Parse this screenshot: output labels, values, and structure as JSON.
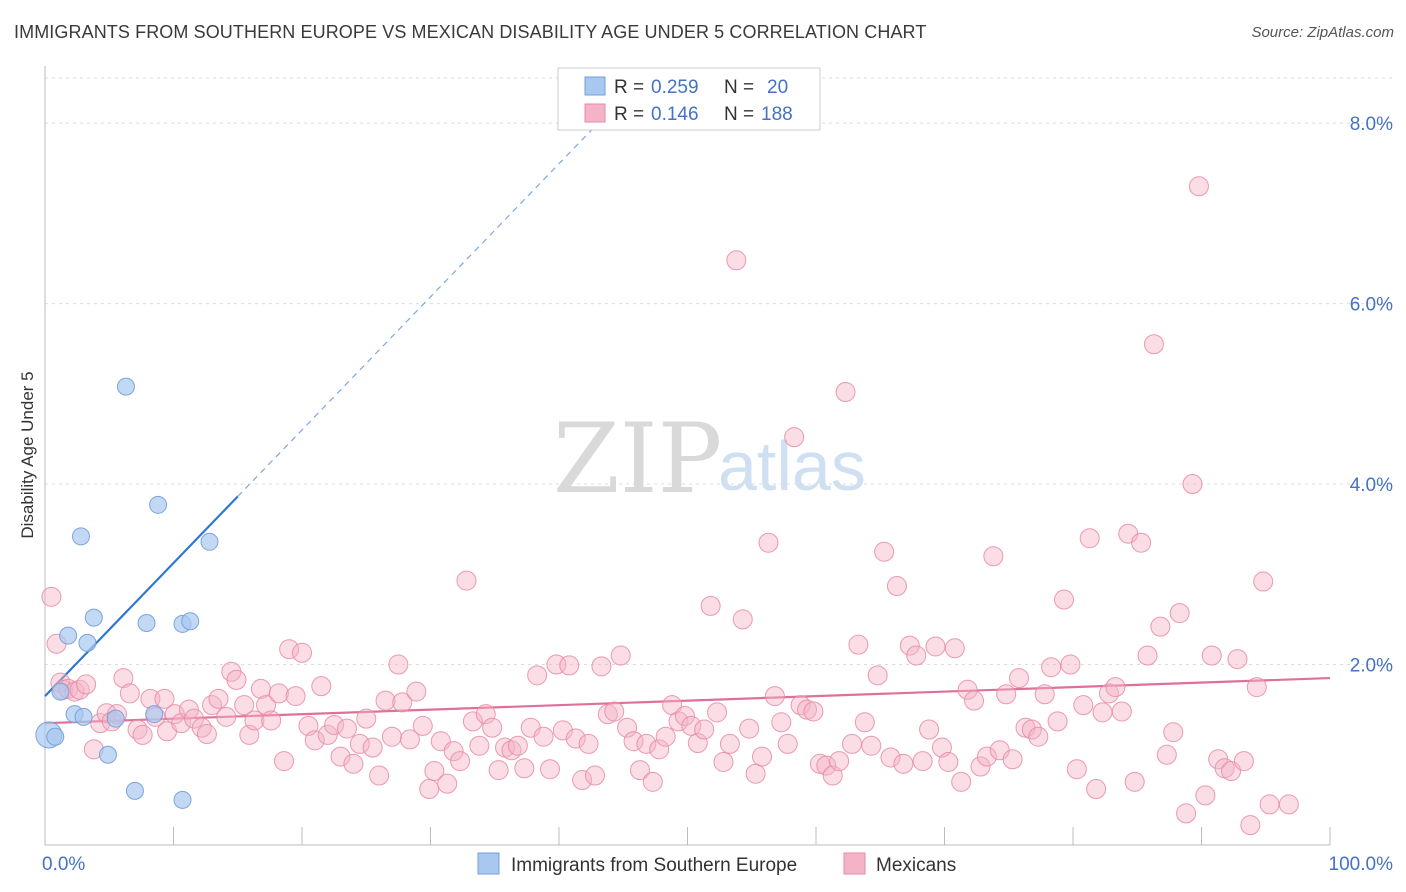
{
  "header": {
    "title": "IMMIGRANTS FROM SOUTHERN EUROPE VS MEXICAN DISABILITY AGE UNDER 5 CORRELATION CHART",
    "source": "Source: ZipAtlas.com"
  },
  "watermark": {
    "zip": "ZIP",
    "atlas": "atlas"
  },
  "legend": {
    "rows": [
      {
        "r_label": "R =",
        "r_value": "0.259",
        "n_label": "N =",
        "n_value": "20",
        "color": "#a9c8f0"
      },
      {
        "r_label": "R =",
        "r_value": "0.146",
        "n_label": "N =",
        "n_value": "188",
        "color": "#f4b3c6"
      }
    ]
  },
  "bottom_legend": [
    {
      "label": "Immigrants from Southern Europe",
      "color": "#a9c8f0"
    },
    {
      "label": "Mexicans",
      "color": "#f4b3c6"
    }
  ],
  "chart_data": {
    "type": "scatter",
    "title": "IMMIGRANTS FROM SOUTHERN EUROPE VS MEXICAN DISABILITY AGE UNDER 5 CORRELATION CHART",
    "xlabel": "",
    "ylabel": "Disability Age Under 5",
    "xlim": [
      0,
      100
    ],
    "ylim": [
      0,
      8.5
    ],
    "x_tick_labels": [
      {
        "value": 0,
        "label": "0.0%"
      },
      {
        "value": 100,
        "label": "100.0%"
      }
    ],
    "y_tick_labels": [
      {
        "value": 2,
        "label": "2.0%"
      },
      {
        "value": 4,
        "label": "4.0%"
      },
      {
        "value": 6,
        "label": "6.0%"
      },
      {
        "value": 8,
        "label": "8.0%"
      }
    ],
    "grid": true,
    "legend_position": "top-center",
    "series": [
      {
        "name": "Immigrants from Southern Europe",
        "color": "#a9c8f0",
        "stroke": "#6f9fd8",
        "points": [
          [
            0.3,
            1.22
          ],
          [
            0.8,
            1.2
          ],
          [
            1.2,
            1.7
          ],
          [
            1.8,
            2.32
          ],
          [
            2.3,
            1.45
          ],
          [
            2.8,
            3.42
          ],
          [
            3.0,
            1.42
          ],
          [
            3.3,
            2.24
          ],
          [
            3.8,
            2.52
          ],
          [
            4.9,
            1.0
          ],
          [
            5.5,
            1.4
          ],
          [
            6.3,
            5.08
          ],
          [
            7.0,
            0.6
          ],
          [
            7.9,
            2.46
          ],
          [
            8.5,
            1.45
          ],
          [
            8.8,
            3.77
          ],
          [
            10.7,
            0.5
          ],
          [
            10.7,
            2.45
          ],
          [
            11.3,
            2.48
          ],
          [
            12.8,
            3.36
          ]
        ],
        "trend": {
          "x": [
            0,
            100
          ],
          "y": [
            1.65,
            16.4
          ],
          "solid_until_x": 15
        }
      },
      {
        "name": "Mexicans",
        "color": "#f4b3c6",
        "stroke": "#e889a6",
        "points": [
          [
            0.5,
            2.75
          ],
          [
            0.9,
            2.23
          ],
          [
            1.2,
            1.8
          ],
          [
            1.4,
            1.72
          ],
          [
            1.8,
            1.73
          ],
          [
            2.3,
            1.7
          ],
          [
            2.7,
            1.72
          ],
          [
            3.2,
            1.78
          ],
          [
            3.8,
            1.06
          ],
          [
            4.3,
            1.35
          ],
          [
            4.8,
            1.46
          ],
          [
            5.2,
            1.37
          ],
          [
            5.6,
            1.45
          ],
          [
            6.1,
            1.85
          ],
          [
            6.6,
            1.68
          ],
          [
            7.2,
            1.28
          ],
          [
            7.6,
            1.22
          ],
          [
            8.2,
            1.62
          ],
          [
            8.6,
            1.42
          ],
          [
            9.3,
            1.62
          ],
          [
            9.5,
            1.26
          ],
          [
            10.1,
            1.45
          ],
          [
            10.6,
            1.35
          ],
          [
            11.2,
            1.5
          ],
          [
            11.6,
            1.4
          ],
          [
            12.2,
            1.3
          ],
          [
            12.6,
            1.23
          ],
          [
            13.0,
            1.55
          ],
          [
            13.5,
            1.62
          ],
          [
            14.1,
            1.42
          ],
          [
            14.5,
            1.92
          ],
          [
            14.9,
            1.83
          ],
          [
            15.5,
            1.55
          ],
          [
            15.9,
            1.22
          ],
          [
            16.3,
            1.38
          ],
          [
            16.8,
            1.73
          ],
          [
            17.2,
            1.55
          ],
          [
            17.6,
            1.38
          ],
          [
            18.2,
            1.68
          ],
          [
            18.6,
            0.93
          ],
          [
            19.0,
            2.17
          ],
          [
            19.5,
            1.65
          ],
          [
            20.0,
            2.13
          ],
          [
            20.5,
            1.32
          ],
          [
            21.0,
            1.16
          ],
          [
            21.5,
            1.76
          ],
          [
            22.0,
            1.22
          ],
          [
            22.5,
            1.33
          ],
          [
            23.0,
            0.98
          ],
          [
            23.5,
            1.29
          ],
          [
            24.0,
            0.9
          ],
          [
            24.5,
            1.12
          ],
          [
            25.0,
            1.4
          ],
          [
            25.5,
            1.08
          ],
          [
            26.0,
            0.77
          ],
          [
            26.5,
            1.6
          ],
          [
            27.0,
            1.2
          ],
          [
            27.5,
            2.0
          ],
          [
            27.8,
            1.58
          ],
          [
            28.4,
            1.17
          ],
          [
            28.9,
            1.7
          ],
          [
            29.4,
            1.32
          ],
          [
            29.9,
            0.62
          ],
          [
            30.3,
            0.82
          ],
          [
            30.8,
            1.15
          ],
          [
            31.3,
            0.68
          ],
          [
            31.8,
            1.04
          ],
          [
            32.3,
            0.93
          ],
          [
            32.8,
            2.93
          ],
          [
            33.3,
            1.37
          ],
          [
            33.8,
            1.1
          ],
          [
            34.3,
            1.45
          ],
          [
            34.8,
            1.3
          ],
          [
            35.3,
            0.83
          ],
          [
            35.8,
            1.08
          ],
          [
            36.3,
            1.05
          ],
          [
            36.8,
            1.1
          ],
          [
            37.3,
            0.85
          ],
          [
            37.8,
            1.3
          ],
          [
            38.3,
            1.88
          ],
          [
            38.8,
            1.2
          ],
          [
            39.3,
            0.84
          ],
          [
            39.8,
            2.0
          ],
          [
            40.3,
            1.27
          ],
          [
            40.8,
            1.99
          ],
          [
            41.3,
            1.18
          ],
          [
            41.8,
            0.72
          ],
          [
            42.3,
            1.12
          ],
          [
            42.8,
            0.77
          ],
          [
            43.3,
            1.98
          ],
          [
            43.8,
            1.45
          ],
          [
            44.3,
            1.48
          ],
          [
            44.8,
            2.1
          ],
          [
            45.3,
            1.3
          ],
          [
            45.8,
            1.15
          ],
          [
            46.3,
            0.83
          ],
          [
            46.8,
            1.12
          ],
          [
            47.3,
            0.7
          ],
          [
            47.8,
            1.06
          ],
          [
            48.3,
            1.2
          ],
          [
            48.8,
            1.55
          ],
          [
            49.3,
            1.37
          ],
          [
            49.8,
            1.43
          ],
          [
            50.3,
            1.32
          ],
          [
            50.8,
            1.13
          ],
          [
            51.3,
            1.28
          ],
          [
            51.8,
            2.65
          ],
          [
            52.3,
            1.47
          ],
          [
            52.8,
            0.92
          ],
          [
            53.3,
            1.12
          ],
          [
            53.8,
            6.48
          ],
          [
            54.3,
            2.5
          ],
          [
            54.8,
            1.29
          ],
          [
            55.3,
            0.79
          ],
          [
            55.8,
            0.98
          ],
          [
            56.3,
            3.35
          ],
          [
            56.8,
            1.65
          ],
          [
            57.3,
            1.36
          ],
          [
            57.8,
            1.12
          ],
          [
            58.3,
            4.52
          ],
          [
            58.8,
            1.55
          ],
          [
            59.3,
            1.5
          ],
          [
            59.8,
            1.48
          ],
          [
            60.3,
            0.9
          ],
          [
            60.8,
            0.88
          ],
          [
            61.3,
            0.77
          ],
          [
            61.8,
            0.93
          ],
          [
            62.3,
            5.02
          ],
          [
            62.8,
            1.12
          ],
          [
            63.3,
            2.22
          ],
          [
            63.8,
            1.36
          ],
          [
            64.3,
            1.1
          ],
          [
            64.8,
            1.88
          ],
          [
            65.3,
            3.25
          ],
          [
            65.8,
            0.97
          ],
          [
            66.3,
            2.87
          ],
          [
            66.8,
            0.9
          ],
          [
            67.3,
            2.21
          ],
          [
            67.8,
            2.1
          ],
          [
            68.3,
            0.93
          ],
          [
            68.8,
            1.28
          ],
          [
            69.3,
            2.2
          ],
          [
            69.8,
            1.08
          ],
          [
            70.3,
            0.92
          ],
          [
            70.8,
            2.18
          ],
          [
            71.3,
            0.7
          ],
          [
            71.8,
            1.72
          ],
          [
            72.3,
            1.6
          ],
          [
            72.8,
            0.87
          ],
          [
            73.3,
            0.98
          ],
          [
            73.8,
            3.2
          ],
          [
            74.3,
            1.05
          ],
          [
            74.8,
            1.67
          ],
          [
            75.3,
            0.95
          ],
          [
            75.8,
            1.85
          ],
          [
            76.3,
            1.3
          ],
          [
            76.8,
            1.28
          ],
          [
            77.3,
            1.2
          ],
          [
            77.8,
            1.67
          ],
          [
            78.3,
            1.97
          ],
          [
            78.8,
            1.37
          ],
          [
            79.3,
            2.72
          ],
          [
            79.8,
            2.0
          ],
          [
            80.3,
            0.84
          ],
          [
            80.8,
            1.55
          ],
          [
            81.3,
            3.4
          ],
          [
            81.8,
            0.62
          ],
          [
            82.3,
            1.47
          ],
          [
            82.8,
            1.68
          ],
          [
            83.3,
            1.75
          ],
          [
            83.8,
            1.48
          ],
          [
            84.3,
            3.45
          ],
          [
            84.8,
            0.7
          ],
          [
            85.3,
            3.35
          ],
          [
            85.8,
            2.1
          ],
          [
            86.3,
            5.55
          ],
          [
            86.8,
            2.42
          ],
          [
            87.3,
            1.0
          ],
          [
            87.8,
            1.25
          ],
          [
            88.3,
            2.57
          ],
          [
            88.8,
            0.35
          ],
          [
            89.3,
            4.0
          ],
          [
            89.8,
            7.3
          ],
          [
            90.3,
            0.55
          ],
          [
            90.8,
            2.1
          ],
          [
            91.3,
            0.95
          ],
          [
            91.8,
            0.85
          ],
          [
            92.3,
            0.82
          ],
          [
            92.8,
            2.06
          ],
          [
            93.3,
            0.93
          ],
          [
            93.8,
            0.22
          ],
          [
            94.3,
            1.75
          ],
          [
            94.8,
            2.92
          ],
          [
            95.3,
            0.45
          ],
          [
            96.8,
            0.45
          ]
        ],
        "trend": {
          "x": [
            0,
            100
          ],
          "y": [
            1.35,
            1.85
          ]
        }
      }
    ]
  }
}
